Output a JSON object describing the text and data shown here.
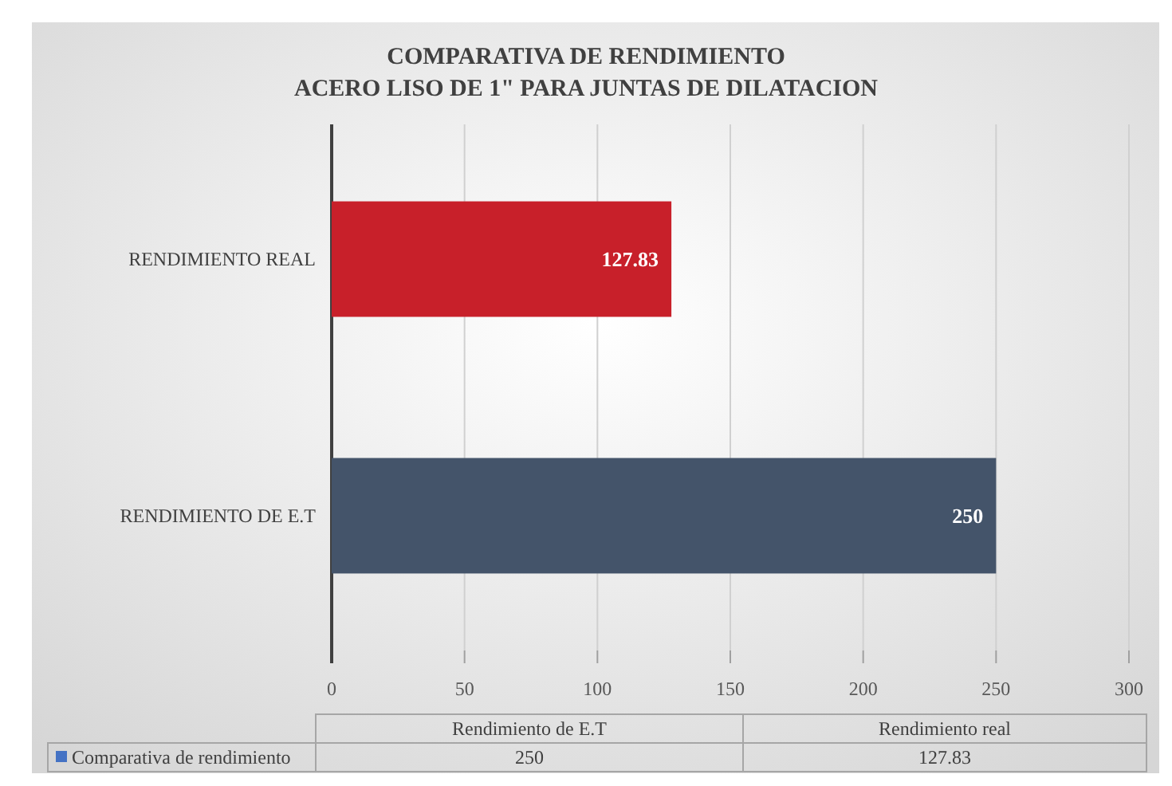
{
  "chart_data": {
    "type": "bar",
    "orientation": "horizontal",
    "title": "COMPARATIVA DE RENDIMIENTO\nACERO LISO DE 1\" PARA JUNTAS DE DILATACION",
    "categories": [
      "RENDIMIENTO REAL",
      "RENDIMIENTO DE E.T"
    ],
    "series": [
      {
        "name": "Comparativa de rendimiento",
        "color": "#4472c4",
        "colors": [
          "#c8202a",
          "#44546a"
        ],
        "values": [
          127.83,
          250
        ]
      }
    ],
    "xlim": [
      0,
      300
    ],
    "xticks": [
      0,
      50,
      100,
      150,
      200,
      250,
      300
    ],
    "grid": "x",
    "data_labels": true,
    "legend": "bottom",
    "annotations": [
      "Rendimiento de E.T",
      "Rendimiento real",
      "250",
      "127.83"
    ]
  }
}
